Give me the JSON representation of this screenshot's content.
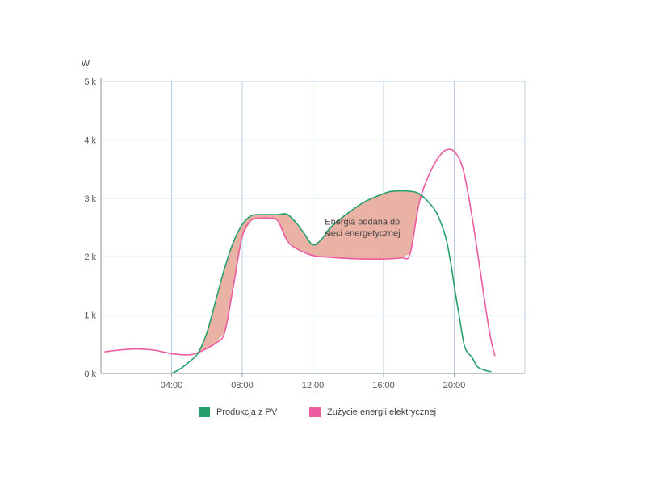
{
  "colors": {
    "production": "#26a06a",
    "consumption": "#ec5aa0",
    "fill": "#e6a594",
    "grid": "#b9cfe6",
    "axis": "#9aa4ad",
    "tick_text": "#555555"
  },
  "chart_data": {
    "type": "line",
    "ylabel": "W",
    "xlim": [
      0,
      24
    ],
    "ylim": [
      0,
      5000
    ],
    "x_ticks": [
      {
        "value": 4,
        "label": "04:00"
      },
      {
        "value": 8,
        "label": "08:00"
      },
      {
        "value": 12,
        "label": "12:00"
      },
      {
        "value": 16,
        "label": "16:00"
      },
      {
        "value": 20,
        "label": "20:00"
      }
    ],
    "y_ticks": [
      {
        "value": 0,
        "label": "0 k"
      },
      {
        "value": 1000,
        "label": "1 k"
      },
      {
        "value": 2000,
        "label": "2 k"
      },
      {
        "value": 3000,
        "label": "3 k"
      },
      {
        "value": 4000,
        "label": "4 k"
      },
      {
        "value": 5000,
        "label": "5 k"
      }
    ],
    "grid": true,
    "legend_position": "bottom-center",
    "series": [
      {
        "name": "Produkcja z PV",
        "key": "production",
        "points": [
          [
            4.0,
            0
          ],
          [
            4.5,
            80
          ],
          [
            5.0,
            200
          ],
          [
            5.5,
            350
          ],
          [
            6.0,
            700
          ],
          [
            6.5,
            1250
          ],
          [
            7.0,
            1800
          ],
          [
            7.5,
            2250
          ],
          [
            8.0,
            2550
          ],
          [
            8.5,
            2700
          ],
          [
            9.0,
            2720
          ],
          [
            10.0,
            2720
          ],
          [
            10.5,
            2730
          ],
          [
            11.0,
            2600
          ],
          [
            11.5,
            2400
          ],
          [
            12.0,
            2200
          ],
          [
            12.5,
            2300
          ],
          [
            13.0,
            2500
          ],
          [
            14.0,
            2750
          ],
          [
            15.0,
            2950
          ],
          [
            16.0,
            3080
          ],
          [
            16.5,
            3120
          ],
          [
            17.5,
            3120
          ],
          [
            18.0,
            3080
          ],
          [
            18.5,
            2950
          ],
          [
            19.0,
            2750
          ],
          [
            19.5,
            2350
          ],
          [
            19.8,
            1900
          ],
          [
            20.0,
            1500
          ],
          [
            20.3,
            950
          ],
          [
            20.6,
            450
          ],
          [
            21.0,
            280
          ],
          [
            21.3,
            120
          ],
          [
            21.7,
            60
          ],
          [
            22.1,
            30
          ]
        ]
      },
      {
        "name": "Zużycie energii elektrycznej",
        "key": "consumption",
        "points": [
          [
            0.2,
            370
          ],
          [
            1.0,
            400
          ],
          [
            2.0,
            420
          ],
          [
            3.0,
            400
          ],
          [
            4.0,
            340
          ],
          [
            5.0,
            320
          ],
          [
            5.5,
            360
          ],
          [
            6.0,
            430
          ],
          [
            6.5,
            520
          ],
          [
            7.0,
            700
          ],
          [
            7.5,
            1500
          ],
          [
            8.0,
            2350
          ],
          [
            8.5,
            2620
          ],
          [
            9.0,
            2660
          ],
          [
            9.5,
            2660
          ],
          [
            10.0,
            2620
          ],
          [
            10.5,
            2300
          ],
          [
            11.0,
            2150
          ],
          [
            12.0,
            2020
          ],
          [
            13.0,
            1990
          ],
          [
            14.0,
            1970
          ],
          [
            15.0,
            1960
          ],
          [
            16.0,
            1960
          ],
          [
            17.0,
            1980
          ],
          [
            17.5,
            2050
          ],
          [
            18.0,
            2900
          ],
          [
            18.5,
            3350
          ],
          [
            19.0,
            3650
          ],
          [
            19.5,
            3820
          ],
          [
            20.0,
            3800
          ],
          [
            20.5,
            3500
          ],
          [
            21.0,
            2700
          ],
          [
            21.5,
            1700
          ],
          [
            22.0,
            700
          ],
          [
            22.3,
            300
          ]
        ]
      }
    ],
    "annotations": [
      {
        "lines": [
          "Energia oddana do",
          "sieci energetycznej"
        ],
        "x": 14.8,
        "y": 2550
      }
    ]
  }
}
